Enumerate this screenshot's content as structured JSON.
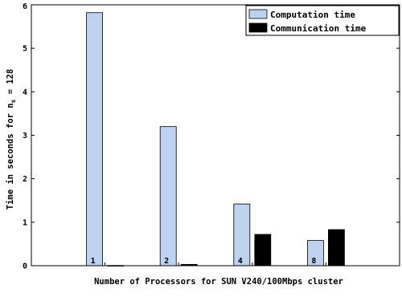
{
  "chart_data": {
    "type": "bar",
    "categories": [
      "1",
      "2",
      "4",
      "8"
    ],
    "series": [
      {
        "name": "Computation time",
        "color": "#bcd2ee",
        "values": [
          5.82,
          3.2,
          1.42,
          0.58
        ]
      },
      {
        "name": "Communication time",
        "color": "#000000",
        "values": [
          0.005,
          0.03,
          0.72,
          0.83
        ]
      }
    ],
    "xlabel": "Number of Processors for SUN V240/100Mbps cluster",
    "ylabel": "Time in seconds for n",
    "ylabel_subscript": "s",
    "ylabel_suffix": " = 128",
    "ylim": [
      0,
      6
    ],
    "yticks": [
      "0",
      "1",
      "2",
      "3",
      "4",
      "5",
      "6"
    ],
    "legend_position": "top-right",
    "grid": false
  }
}
